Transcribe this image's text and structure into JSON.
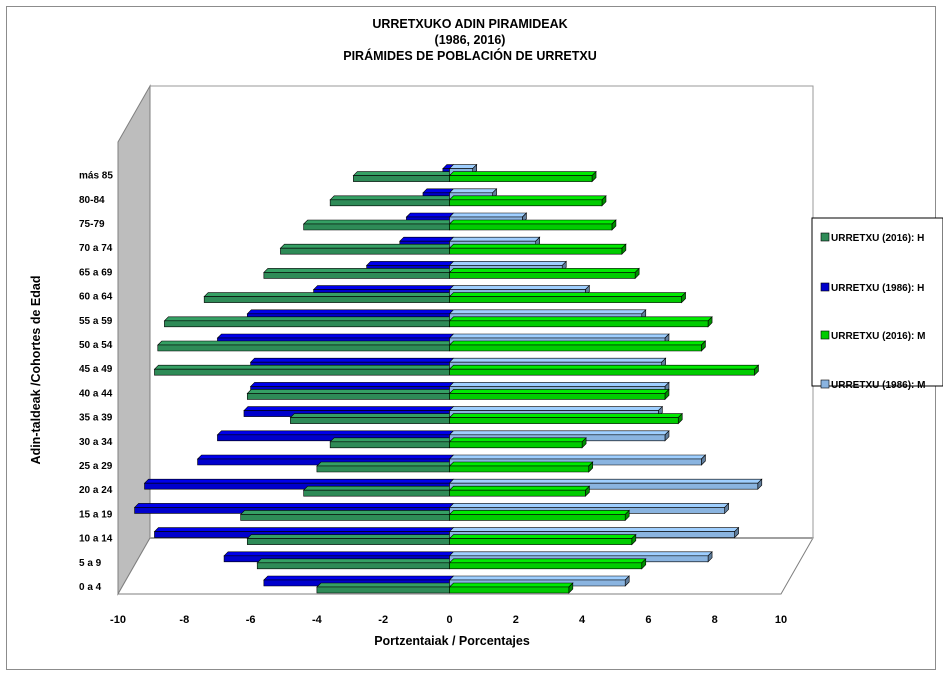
{
  "chart_data": {
    "type": "bar",
    "orientation": "horizontal",
    "style": "3d-population-pyramid",
    "title_lines": [
      "URRETXUKO ADIN PIRAMIDEAK",
      "(1986, 2016)",
      "PIRÁMIDES DE POBLACIÓN DE  URRETXU"
    ],
    "xlabel": "Portzentaiak / Porcentajes",
    "ylabel": "Adin-taldeak /Cohortes de Edad",
    "xlim": [
      -10,
      10
    ],
    "xticks": [
      -10,
      -8,
      -6,
      -4,
      -2,
      0,
      2,
      4,
      6,
      8,
      10
    ],
    "categories": [
      "0 a 4",
      "5 a 9",
      "10 a 14",
      "15 a 19",
      "20 a 24",
      "25 a 29",
      "30 a 34",
      "35 a 39",
      "40 a 44",
      "45 a 49",
      "50 a 54",
      "55 a 59",
      "60 a 64",
      "65 a 69",
      "70 a 74",
      "75-79",
      "80-84",
      "más 85"
    ],
    "legend_position": "right",
    "series": [
      {
        "name": "URRETXU (2016): H",
        "color": "#2e8b57",
        "values": [
          -4.0,
          -5.8,
          -6.1,
          -6.3,
          -4.4,
          -4.0,
          -3.6,
          -4.8,
          -6.1,
          -8.9,
          -8.8,
          -8.6,
          -7.4,
          -5.6,
          -5.1,
          -4.4,
          -3.6,
          -2.9
        ]
      },
      {
        "name": "URRETXU (1986): H",
        "color": "#0000cc",
        "values": [
          -5.6,
          -6.8,
          -8.9,
          -9.5,
          -9.2,
          -7.6,
          -7.0,
          -6.2,
          -6.0,
          -6.0,
          -7.0,
          -6.1,
          -4.1,
          -2.5,
          -1.5,
          -1.3,
          -0.8,
          -0.2
        ]
      },
      {
        "name": "URRETXU (2016): M",
        "color": "#00cc00",
        "values": [
          3.6,
          5.8,
          5.5,
          5.3,
          4.1,
          4.2,
          4.0,
          6.9,
          6.5,
          9.2,
          7.6,
          7.8,
          7.0,
          5.6,
          5.2,
          4.9,
          4.6,
          4.3
        ]
      },
      {
        "name": "URRETXU (1986): M",
        "color": "#8ab4e0",
        "values": [
          5.3,
          7.8,
          8.6,
          8.3,
          9.3,
          7.6,
          6.5,
          6.3,
          6.5,
          6.4,
          6.5,
          5.8,
          4.1,
          3.4,
          2.6,
          2.2,
          1.3,
          0.7
        ]
      }
    ]
  }
}
